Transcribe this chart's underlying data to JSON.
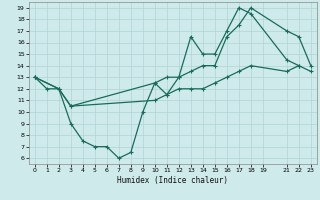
{
  "xlabel": "Humidex (Indice chaleur)",
  "bg_color": "#ceeaea",
  "grid_color": "#afd4d4",
  "line_color": "#1a6b5a",
  "xlim": [
    -0.5,
    23.5
  ],
  "ylim": [
    5.5,
    19.5
  ],
  "xticks": [
    0,
    1,
    2,
    3,
    4,
    5,
    6,
    7,
    8,
    9,
    10,
    11,
    12,
    13,
    14,
    15,
    16,
    17,
    18,
    19,
    21,
    22,
    23
  ],
  "yticks": [
    6,
    7,
    8,
    9,
    10,
    11,
    12,
    13,
    14,
    15,
    16,
    17,
    18,
    19
  ],
  "curve1_x": [
    0,
    1,
    2,
    3,
    4,
    5,
    6,
    7,
    8,
    9,
    10,
    11,
    12,
    13,
    14,
    15,
    16,
    17,
    18,
    21,
    22
  ],
  "curve1_y": [
    13,
    12,
    12,
    9,
    7.5,
    7,
    7,
    6,
    6.5,
    10,
    12.5,
    11.5,
    13,
    16.5,
    15,
    15,
    17,
    19,
    18.5,
    14.5,
    14
  ],
  "curve2_x": [
    0,
    2,
    3,
    10,
    11,
    12,
    13,
    14,
    15,
    16,
    17,
    18,
    21,
    22,
    23
  ],
  "curve2_y": [
    13,
    12,
    10.5,
    12.5,
    13,
    13,
    13.5,
    14,
    14,
    16.5,
    17.5,
    19,
    17,
    16.5,
    14
  ],
  "curve3_x": [
    0,
    2,
    3,
    10,
    11,
    12,
    13,
    14,
    15,
    16,
    17,
    18,
    21,
    22,
    23
  ],
  "curve3_y": [
    13,
    12,
    10.5,
    11,
    11.5,
    12,
    12,
    12,
    12.5,
    13,
    13.5,
    14,
    13.5,
    14,
    13.5
  ]
}
